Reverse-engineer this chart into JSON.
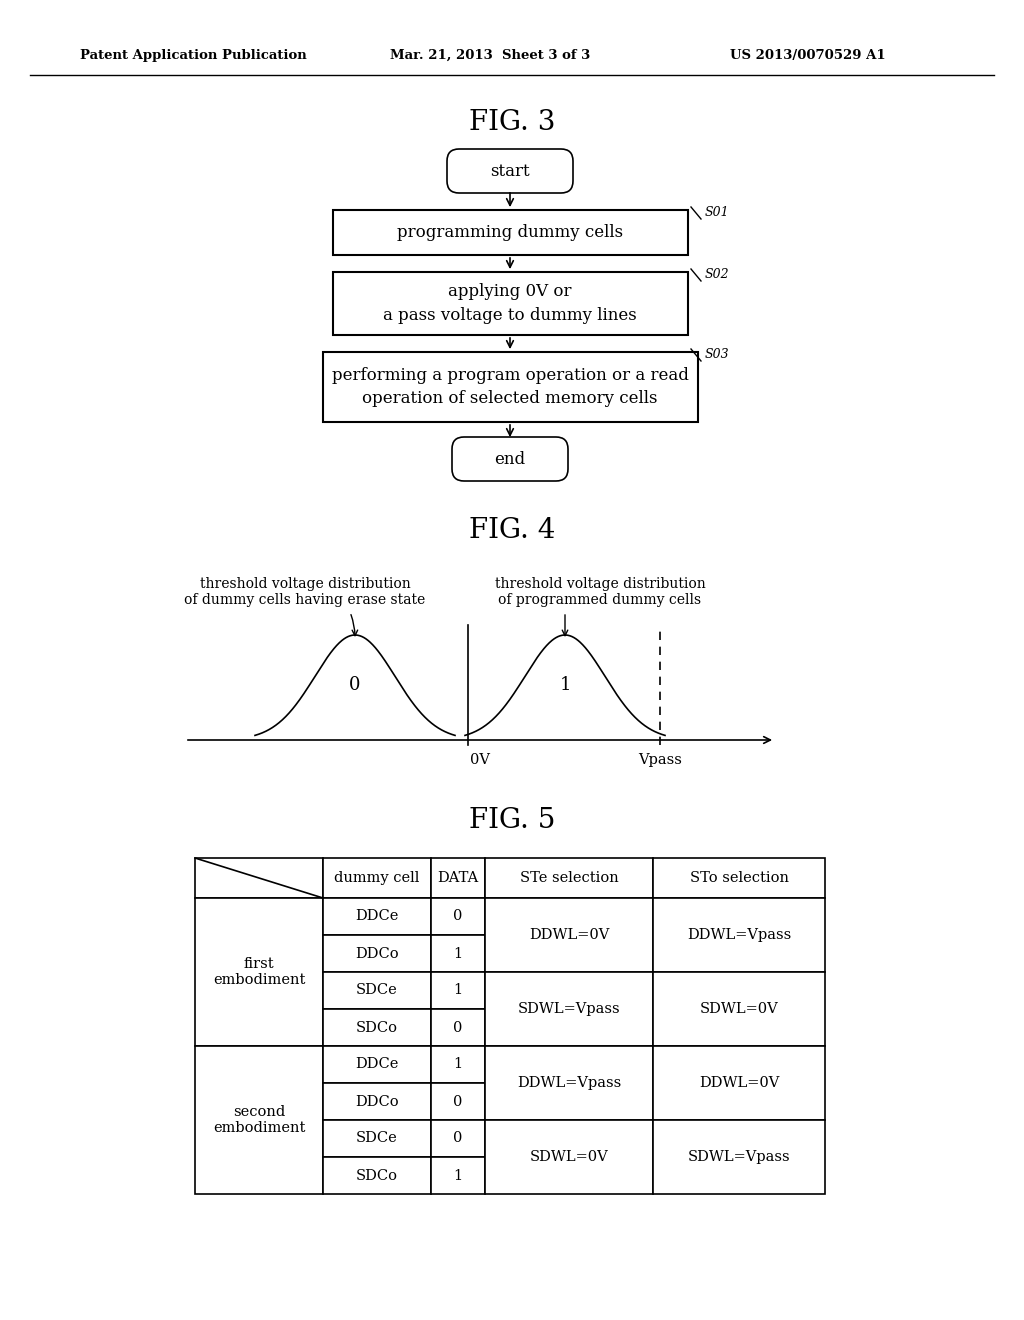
{
  "header_left": "Patent Application Publication",
  "header_mid": "Mar. 21, 2013  Sheet 3 of 3",
  "header_right": "US 2013/0070529 A1",
  "fig3_title": "FIG. 3",
  "fig4_title": "FIG. 4",
  "fig5_title": "FIG. 5",
  "flowchart": {
    "start_text": "start",
    "box1_text": "programming dummy cells",
    "box2_text": "applying 0V or\na pass voltage to dummy lines",
    "box3_text": "performing a program operation or a read\noperation of selected memory cells",
    "end_text": "end",
    "label1": "S01",
    "label2": "S02",
    "label3": "S03"
  },
  "fig4": {
    "label_left": "threshold voltage distribution\nof dummy cells having erase state",
    "label_right": "threshold voltage distribution\nof programmed dummy cells",
    "peak0_label": "0",
    "peak1_label": "1",
    "axis_label_0V": "0V",
    "axis_label_Vpass": "Vpass"
  },
  "fig5": {
    "col_headers": [
      "dummy cell",
      "DATA",
      "STe selection",
      "STo selection"
    ],
    "row_group1_label": "first\nembodiment",
    "row_group2_label": "second\nembodiment",
    "cells_group1": [
      [
        "DDCe",
        "0",
        "DDWL=0V",
        "DDWL=Vpass"
      ],
      [
        "DDCo",
        "1",
        "",
        ""
      ],
      [
        "SDCe",
        "1",
        "SDWL=Vpass",
        "SDWL=0V"
      ],
      [
        "SDCo",
        "0",
        "",
        ""
      ]
    ],
    "cells_group2": [
      [
        "DDCe",
        "1",
        "DDWL=Vpass",
        "DDWL=0V"
      ],
      [
        "DDCo",
        "0",
        "",
        ""
      ],
      [
        "SDCe",
        "0",
        "SDWL=0V",
        "SDWL=Vpass"
      ],
      [
        "SDCo",
        "1",
        "",
        ""
      ]
    ]
  },
  "bg_color": "#ffffff",
  "line_color": "#000000"
}
